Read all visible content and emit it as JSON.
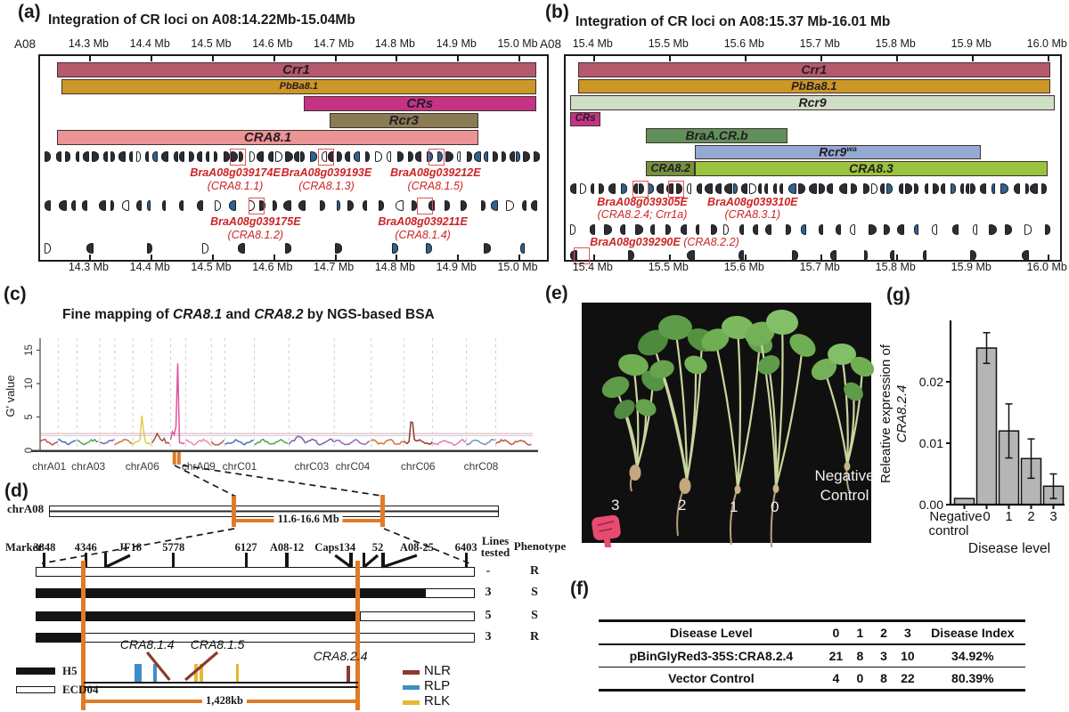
{
  "panels": {
    "a": {
      "label": "(a)",
      "title": "Integration of CR loci on A08:14.22Mb-15.04Mb",
      "chrom_label": "A08",
      "axis": {
        "mb0": 14.218,
        "mb1": 15.045,
        "ticks": [
          {
            "v": 14.3,
            "t": "14.3 Mb"
          },
          {
            "v": 14.4,
            "t": "14.4 Mb"
          },
          {
            "v": 14.5,
            "t": "14.5 Mb"
          },
          {
            "v": 14.6,
            "t": "14.6 Mb"
          },
          {
            "v": 14.7,
            "t": "14.7 Mb"
          },
          {
            "v": 14.8,
            "t": "14.8 Mb"
          },
          {
            "v": 14.9,
            "t": "14.9 Mb"
          },
          {
            "v": 15.0,
            "t": "15.0 Mb"
          }
        ]
      },
      "tracks": [
        [
          {
            "name": "Crr1",
            "s": 14.245,
            "e": 15.027,
            "c": "#b5596c",
            "fs": 15
          }
        ],
        [
          {
            "name": "PbBa8.1",
            "s": 14.253,
            "e": 15.027,
            "c": "#cc9726",
            "fs": 11
          }
        ],
        [
          {
            "name": "CRs",
            "s": 14.648,
            "e": 15.027,
            "c": "#c53385",
            "fs": 15
          }
        ],
        [
          {
            "name": "Rcr3",
            "s": 14.69,
            "e": 14.933,
            "c": "#8a7b54",
            "fs": 15
          }
        ],
        [
          {
            "name": "CRA8.1",
            "s": 14.246,
            "e": 14.933,
            "c": "#ec9495",
            "fs": 15
          }
        ]
      ],
      "gene_rows": [
        {
          "density": "dense",
          "seed": 11,
          "red_boxes": [
            0.389,
            0.563,
            0.781
          ],
          "labels": [
            {
              "g": "BraA08g039174E",
              "p": "(CRA8.1.1)",
              "fr": 0.385
            },
            {
              "g": "BraA08g039193E",
              "p": "(CRA8.1.3)",
              "fr": 0.565
            },
            {
              "g": "BraA08g039212E",
              "p": "(CRA8.1.5)",
              "fr": 0.78
            }
          ]
        },
        {
          "density": "medium",
          "seed": 22,
          "red_boxes": [
            0.426,
            0.757
          ],
          "labels": [
            {
              "g": "BraA08g039175E",
              "p": "(CRA8.1.2)",
              "fr": 0.425
            },
            {
              "g": "BraA08g039211E",
              "p": "(CRA8.1.4)",
              "fr": 0.755
            }
          ]
        },
        {
          "density": "sparse",
          "seed": 33,
          "red_boxes": [],
          "labels": []
        }
      ]
    },
    "b": {
      "label": "(b)",
      "title": "Integration of CR loci on A08:15.37 Mb-16.01 Mb",
      "chrom_label": "A08",
      "axis": {
        "mb0": 15.362,
        "mb1": 16.015,
        "ticks": [
          {
            "v": 15.4,
            "t": "15.4 Mb"
          },
          {
            "v": 15.5,
            "t": "15.5 Mb"
          },
          {
            "v": 15.6,
            "t": "15.6 Mb"
          },
          {
            "v": 15.7,
            "t": "15.7 Mb"
          },
          {
            "v": 15.8,
            "t": "15.8 Mb"
          },
          {
            "v": 15.9,
            "t": "15.9 Mb"
          },
          {
            "v": 16.0,
            "t": "16.0 Mb"
          }
        ]
      },
      "tracks": [
        [
          {
            "name": "Crr1",
            "s": 15.378,
            "e": 16.002,
            "c": "#b5596c",
            "fs": 14
          }
        ],
        [
          {
            "name": "PbBa8.1",
            "s": 15.378,
            "e": 16.002,
            "c": "#cc9726",
            "fs": 13
          }
        ],
        [
          {
            "name": "Rcr9",
            "s": 15.368,
            "e": 16.008,
            "c": "#cfdfc5",
            "fs": 14
          }
        ],
        [
          {
            "name": "CRs",
            "s": 15.368,
            "e": 15.408,
            "c": "#c53385",
            "fs": 11.5
          }
        ],
        [
          {
            "name": "BraA.CR.b",
            "s": 15.468,
            "e": 15.655,
            "c": "#5f9059",
            "fs": 14
          }
        ],
        [
          {
            "name": "Rcr9",
            "sup": "wa",
            "s": 15.533,
            "e": 15.91,
            "c": "#93aad2",
            "fs": 14
          }
        ],
        [
          {
            "name": "CRA8.2",
            "s": 15.468,
            "e": 15.533,
            "c": "#75923e",
            "fs": 12.5
          },
          {
            "name": "CRA8.3",
            "s": 15.533,
            "e": 15.998,
            "c": "#9ac43d",
            "fs": 14
          }
        ]
      ],
      "gene_rows": [
        {
          "density": "dense",
          "seed": 47,
          "red_boxes": [
            0.15,
            0.222
          ],
          "labels": [
            {
              "g": "BraA08g039305E",
              "p": "(CRA8.2.4; Crr1a)",
              "fr": 0.155
            },
            {
              "g": "BraA08g039310E",
              "p": "(CRA8.3.1)",
              "fr": 0.378
            }
          ]
        },
        {
          "density": "medium",
          "seed": 58,
          "red_boxes": [],
          "labels": [
            {
              "g": "BraA08g039290E",
              "p": "(CRA8.2.2)",
              "fr": 0.2,
              "inline": true
            }
          ]
        },
        {
          "density": "sparse",
          "seed": 69,
          "red_boxes": [
            0.03
          ],
          "labels": []
        }
      ]
    },
    "c": {
      "label": "(c)",
      "title_parts": [
        {
          "t": "Fine mapping of ",
          "i": 0
        },
        {
          "t": "CRA8.1",
          "i": 1
        },
        {
          "t": " and ",
          "i": 0
        },
        {
          "t": "CRA8.2",
          "i": 1
        },
        {
          "t": " by NGS-based BSA",
          "i": 0
        }
      ],
      "ylabel": "G' value",
      "yticks": [
        0,
        5,
        10,
        15
      ],
      "threshold_pink": 2.5,
      "threshold_blue": 2.2,
      "orange_marks_chrom": "chrA08",
      "chromosomes": [
        {
          "name": "chrA01",
          "size": 24,
          "color": "#c0534a",
          "label": true,
          "peaks": []
        },
        {
          "name": "chrA02",
          "size": 25,
          "color": "#4a6fb8",
          "label": false,
          "peaks": []
        },
        {
          "name": "chrA03",
          "size": 30,
          "color": "#55a055",
          "label": true,
          "peaks": []
        },
        {
          "name": "chrA04",
          "size": 20,
          "color": "#7b5fa9",
          "label": false,
          "peaks": []
        },
        {
          "name": "chrA05",
          "size": 24,
          "color": "#d2703a",
          "label": false,
          "peaks": []
        },
        {
          "name": "chrA06",
          "size": 25,
          "color": "#e0cb52",
          "label": true,
          "peaks": [
            {
              "p": 0.5,
              "h": 4.2,
              "s": 0.05
            }
          ]
        },
        {
          "name": "chrA07",
          "size": 25,
          "color": "#a34f3d",
          "label": false,
          "peaks": [
            {
              "p": 0.3,
              "h": 1.1,
              "s": 0.09
            },
            {
              "p": 0.65,
              "h": 0.9,
              "s": 0.07
            }
          ]
        },
        {
          "name": "chrA08",
          "size": 20,
          "color": "#e0559a",
          "label": false,
          "peaks": [
            {
              "p": 0.16,
              "h": 1.4,
              "s": 0.07
            },
            {
              "p": 0.45,
              "h": 13.2,
              "s": 0.05
            }
          ]
        },
        {
          "name": "chrA09",
          "size": 34,
          "color": "#e591ac",
          "label": true,
          "peaks": []
        },
        {
          "name": "chrA10",
          "size": 18,
          "color": "#c0534a",
          "label": false,
          "peaks": []
        },
        {
          "name": "chrC01",
          "size": 39,
          "color": "#4a6fb8",
          "label": true,
          "peaks": []
        },
        {
          "name": "chrC02",
          "size": 46,
          "color": "#55a055",
          "label": false,
          "peaks": []
        },
        {
          "name": "chrC03",
          "size": 60,
          "color": "#7b5fa9",
          "label": true,
          "peaks": [
            {
              "p": 0.25,
              "h": 0.9,
              "s": 0.06
            }
          ]
        },
        {
          "name": "chrC04",
          "size": 49,
          "color": "#9467bd",
          "label": true,
          "peaks": []
        },
        {
          "name": "chrC05",
          "size": 43,
          "color": "#d2703a",
          "label": false,
          "peaks": []
        },
        {
          "name": "chrC06",
          "size": 38,
          "color": "#8b3a2e",
          "label": true,
          "peaks": [
            {
              "p": 0.28,
              "h": 4.0,
              "s": 0.045
            }
          ]
        },
        {
          "name": "chrC07",
          "size": 45,
          "color": "#de7ab0",
          "label": false,
          "peaks": []
        },
        {
          "name": "chrC08",
          "size": 39,
          "color": "#7a8fc0",
          "label": true,
          "peaks": []
        },
        {
          "name": "chrC09",
          "size": 49,
          "color": "#c0534a",
          "label": false,
          "peaks": []
        }
      ]
    },
    "d": {
      "label": "(d)",
      "chrom": "chrA08",
      "region_label": "11.6-16.6 Mb",
      "scale_label": "1,428kb",
      "header_marker": "Marker",
      "header_lines": [
        "Lines",
        "tested"
      ],
      "header_pheno": "Phenotype",
      "chr_ticks_fr": [
        0.413,
        0.745
      ],
      "orange_fr": [
        0.1095,
        0.734
      ],
      "markers": [
        {
          "name": "3848",
          "fr": 0.02
        },
        {
          "name": "4346",
          "fr": 0.114
        },
        {
          "name": "JF18",
          "fr": 0.16,
          "label_fr": 0.215
        },
        {
          "name": "5778",
          "fr": 0.314
        },
        {
          "name": "6127",
          "fr": 0.479
        },
        {
          "name": "A08-12",
          "fr": 0.572
        },
        {
          "name": "Caps134",
          "fr": 0.718,
          "label_fr": 0.682
        },
        {
          "name": "52",
          "fr": 0.748,
          "label_fr": 0.779
        },
        {
          "name": "A08-25",
          "fr": 0.791,
          "label_fr": 0.868
        },
        {
          "name": "6403",
          "fr": 0.98
        }
      ],
      "rows": [
        {
          "black_fr": 0.0,
          "lines": "-",
          "pheno": "R"
        },
        {
          "black_fr": 0.886,
          "lines": "3",
          "pheno": "S"
        },
        {
          "black_fr": 0.738,
          "lines": "5",
          "pheno": "S"
        },
        {
          "black_fr": 0.112,
          "lines": "3",
          "pheno": "R"
        }
      ],
      "genes": {
        "rlp": [
          0.229,
          0.237,
          0.272
        ],
        "rlk": [
          0.365,
          0.377,
          0.46
        ],
        "nlr_callout": [
          {
            "label": "CRA8.1.4",
            "label_fr": 0.254,
            "tick_fr": 0.305
          },
          {
            "label": "CRA8.1.5",
            "label_fr": 0.414,
            "tick_fr": 0.341
          }
        ],
        "nlr_tick": {
          "label": "CRA8.2.4",
          "label_fr": 0.694,
          "fr": 0.712
        }
      },
      "legend": {
        "h5": "H5",
        "ecd04": "ECD04",
        "nlr": "NLR",
        "rlp": "RLP",
        "rlk": "RLK"
      },
      "colors": {
        "nlr": "#8b3a2e",
        "rlp": "#3f8fc4",
        "rlk": "#e8b830",
        "orange": "#e07b28"
      }
    },
    "e": {
      "label": "(e)",
      "plant_labels": [
        "3",
        "2",
        "1",
        "0"
      ],
      "nc_label": [
        "Negative",
        "Control"
      ]
    },
    "f": {
      "label": "(f)",
      "headers": [
        "Disease Level",
        "0",
        "1",
        "2",
        "3",
        "Disease Index"
      ],
      "rows": [
        [
          "pBinGlyRed3-35S:CRA8.2.4",
          "21",
          "8",
          "3",
          "10",
          "34.92%"
        ],
        [
          "Vector Control",
          "4",
          "0",
          "8",
          "22",
          "80.39%"
        ]
      ]
    },
    "g": {
      "label": "(g)",
      "ylabel_line1": "Releative expression of",
      "ylabel_line2": "CRA8.2.4",
      "xlabel": "Disease level",
      "ytick_labels": [
        "0.00",
        "0.01",
        "0.02"
      ],
      "xtick_first": [
        "Negative",
        "control"
      ]
    }
  },
  "chart_data": [
    {
      "id": "panel-c-bsa",
      "type": "line",
      "title": "Fine mapping of CRA8.1 and CRA8.2 by NGS-based BSA",
      "ylabel": "G' value",
      "yticks": [
        0,
        5,
        10,
        15
      ],
      "ylim": [
        0,
        16
      ],
      "threshold": 2.5,
      "x_axis": "B. napus chromosomes chrA01-chrA10, chrC01-chrC09",
      "xtick_labels_shown": [
        "chrA01",
        "chrA03",
        "chrA06",
        "chrA09",
        "chrC01",
        "chrC03",
        "chrC04",
        "chrC06",
        "chrC08"
      ],
      "baseline_g_value": 1.3,
      "significant_peaks": [
        {
          "chrom": "chrA06",
          "g_value": 5.5
        },
        {
          "chrom": "chrA08",
          "g_value": 14.5
        },
        {
          "chrom": "chrC06",
          "g_value": 5.2
        }
      ],
      "highlight_marks_chrom": "chrA08"
    },
    {
      "id": "panel-g-expression",
      "type": "bar",
      "categories": [
        "Negative control",
        "0",
        "1",
        "2",
        "3"
      ],
      "values": [
        0.001,
        0.0255,
        0.012,
        0.0075,
        0.003
      ],
      "errors": [
        0,
        0.0025,
        0.0044,
        0.0032,
        0.002
      ],
      "title": "",
      "xlabel": "Disease level",
      "ylabel": "Releative expression of CRA8.2.4",
      "yticks": [
        0.0,
        0.01,
        0.02
      ],
      "ylim": [
        0,
        0.029
      ],
      "bar_color": "#b5b5b5"
    }
  ]
}
